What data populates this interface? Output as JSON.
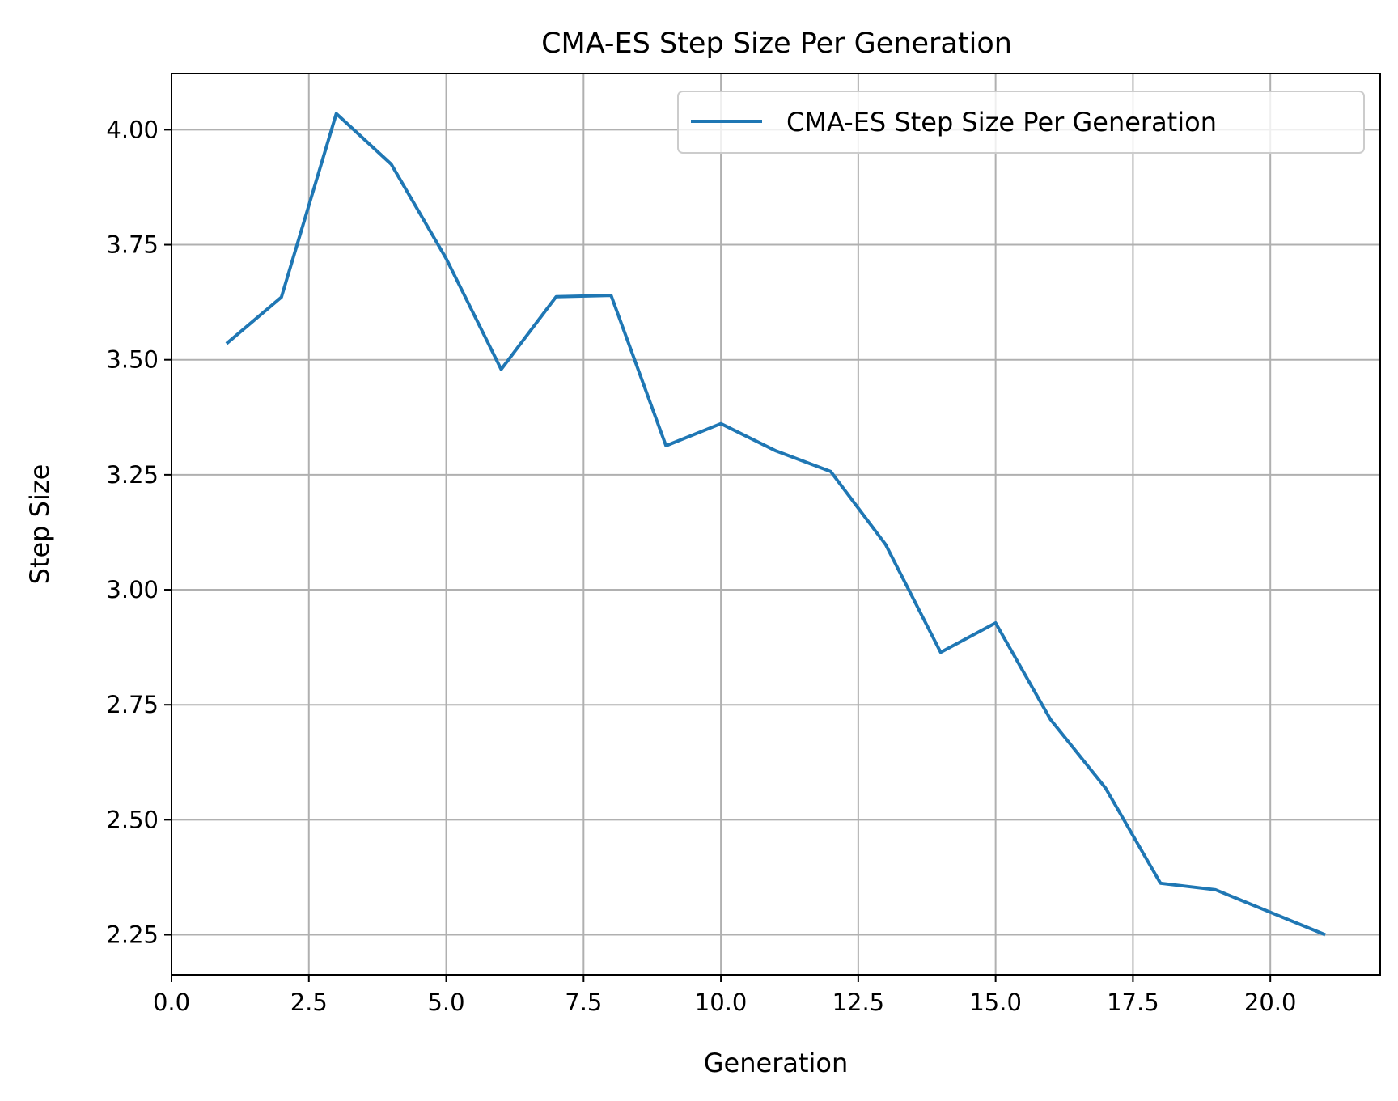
{
  "chart_data": {
    "type": "line",
    "title": "CMA-ES Step Size Per Generation",
    "xlabel": "Generation",
    "ylabel": "Step Size",
    "xlim": [
      0,
      22
    ],
    "ylim": [
      2.163,
      4.122
    ],
    "xticks": [
      0.0,
      2.5,
      5.0,
      7.5,
      10.0,
      12.5,
      15.0,
      17.5,
      20.0
    ],
    "xtick_labels": [
      "0.0",
      "2.5",
      "5.0",
      "7.5",
      "10.0",
      "12.5",
      "15.0",
      "17.5",
      "20.0"
    ],
    "yticks": [
      2.25,
      2.5,
      2.75,
      3.0,
      3.25,
      3.5,
      3.75,
      4.0
    ],
    "ytick_labels": [
      "2.25",
      "2.50",
      "2.75",
      "3.00",
      "3.25",
      "3.50",
      "3.75",
      "4.00"
    ],
    "grid": true,
    "legend_position": "top-right",
    "series": [
      {
        "name": "CMA-ES Step Size Per Generation",
        "color": "#1f77b4",
        "x": [
          1,
          2,
          3,
          4,
          5,
          6,
          7,
          8,
          9,
          10,
          11,
          12,
          13,
          14,
          15,
          16,
          17,
          18,
          19,
          20,
          21
        ],
        "y": [
          3.535,
          3.636,
          4.035,
          3.925,
          3.72,
          3.479,
          3.637,
          3.64,
          3.313,
          3.361,
          3.302,
          3.257,
          3.098,
          2.864,
          2.928,
          2.718,
          2.569,
          2.362,
          2.348,
          2.299,
          2.25
        ]
      }
    ]
  }
}
